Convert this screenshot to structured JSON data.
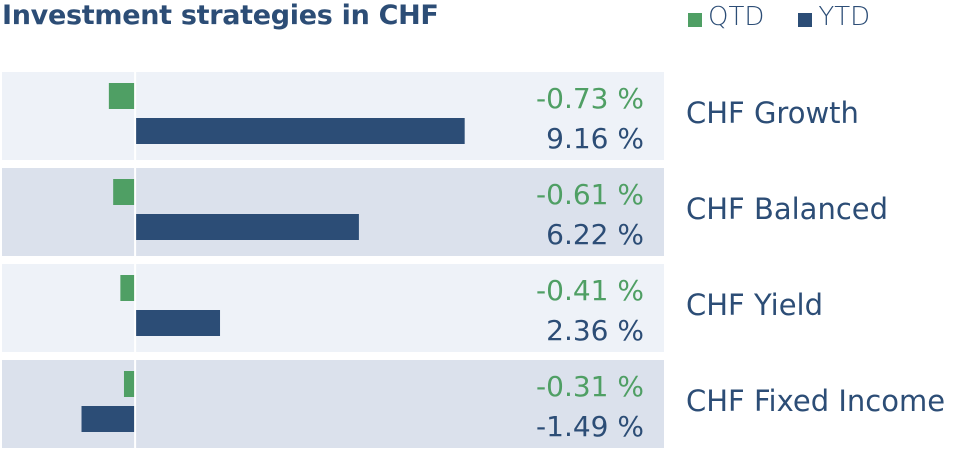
{
  "title": "Investment strategies in CHF",
  "legend": [
    {
      "label": "QTD",
      "color": "#4f9f64"
    },
    {
      "label": "YTD",
      "color": "#2c4d76"
    }
  ],
  "colors": {
    "qtd": "#4f9f64",
    "ytd": "#2c4d76",
    "row_light": "#eef2f8",
    "row_dark": "#dbe1ec",
    "axis": "#ffffff"
  },
  "chart_data": {
    "type": "bar",
    "orientation": "horizontal",
    "categories": [
      "CHF Growth",
      "CHF Balanced",
      "CHF Yield",
      "CHF Fixed Income"
    ],
    "series": [
      {
        "name": "QTD",
        "values": [
          -0.73,
          -0.61,
          -0.41,
          -0.31
        ],
        "labels": [
          "-0.73 %",
          "-0.61 %",
          "-0.41 %",
          "-0.31 %"
        ]
      },
      {
        "name": "YTD",
        "values": [
          9.16,
          6.22,
          2.36,
          -1.49
        ],
        "labels": [
          "9.16 %",
          "6.22 %",
          "2.36 %",
          "-1.49 %"
        ]
      }
    ],
    "title": "Investment strategies in CHF",
    "xlim": [
      -3.7,
      14.7
    ],
    "grid": false,
    "legend_position": "top-right"
  }
}
